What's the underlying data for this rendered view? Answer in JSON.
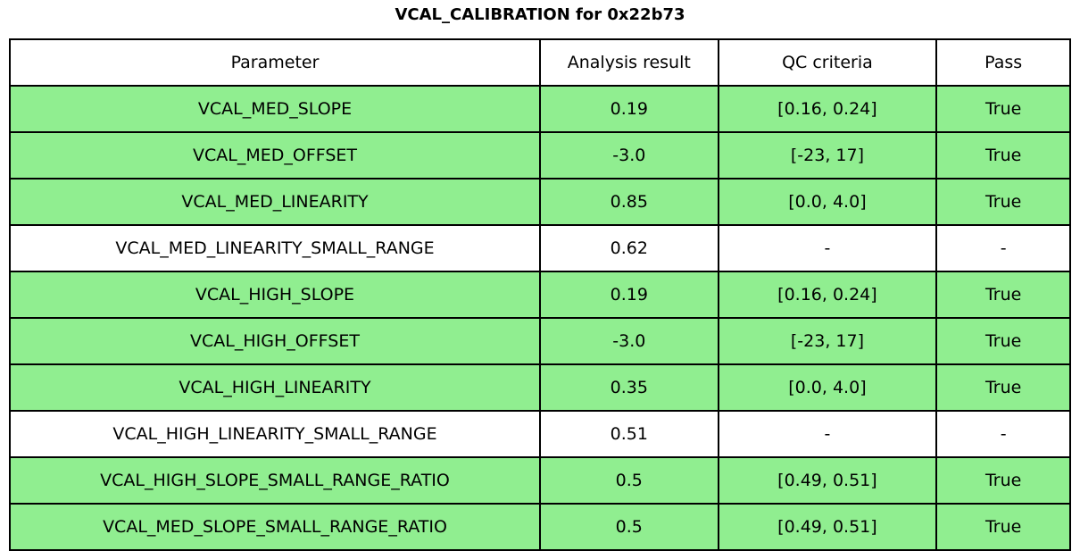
{
  "chart_data": {
    "type": "table",
    "title": "VCAL_CALIBRATION for 0x22b73",
    "columns": [
      "Parameter",
      "Analysis result",
      "QC criteria",
      "Pass"
    ],
    "rows": [
      [
        "VCAL_MED_SLOPE",
        "0.19",
        "[0.16, 0.24]",
        "True"
      ],
      [
        "VCAL_MED_OFFSET",
        "-3.0",
        "[-23, 17]",
        "True"
      ],
      [
        "VCAL_MED_LINEARITY",
        "0.85",
        "[0.0, 4.0]",
        "True"
      ],
      [
        "VCAL_MED_LINEARITY_SMALL_RANGE",
        "0.62",
        "-",
        "-"
      ],
      [
        "VCAL_HIGH_SLOPE",
        "0.19",
        "[0.16, 0.24]",
        "True"
      ],
      [
        "VCAL_HIGH_OFFSET",
        "-3.0",
        "[-23, 17]",
        "True"
      ],
      [
        "VCAL_HIGH_LINEARITY",
        "0.35",
        "[0.0, 4.0]",
        "True"
      ],
      [
        "VCAL_HIGH_LINEARITY_SMALL_RANGE",
        "0.51",
        "-",
        "-"
      ],
      [
        "VCAL_HIGH_SLOPE_SMALL_RANGE_RATIO",
        "0.5",
        "[0.49, 0.51]",
        "True"
      ],
      [
        "VCAL_MED_SLOPE_SMALL_RANGE_RATIO",
        "0.5",
        "[0.49, 0.51]",
        "True"
      ]
    ],
    "row_highlight": [
      true,
      true,
      true,
      false,
      true,
      true,
      true,
      false,
      true,
      true
    ],
    "layout": {
      "grid": "on",
      "header_background": "#FFFFFF",
      "column_fractions": [
        0.5,
        0.168,
        0.206,
        0.126
      ]
    }
  },
  "colors": {
    "pass_row": "#90EE90",
    "neutral_row": "#FFFFFF",
    "border": "#000000",
    "text": "#000000",
    "background": "#FFFFFF"
  }
}
